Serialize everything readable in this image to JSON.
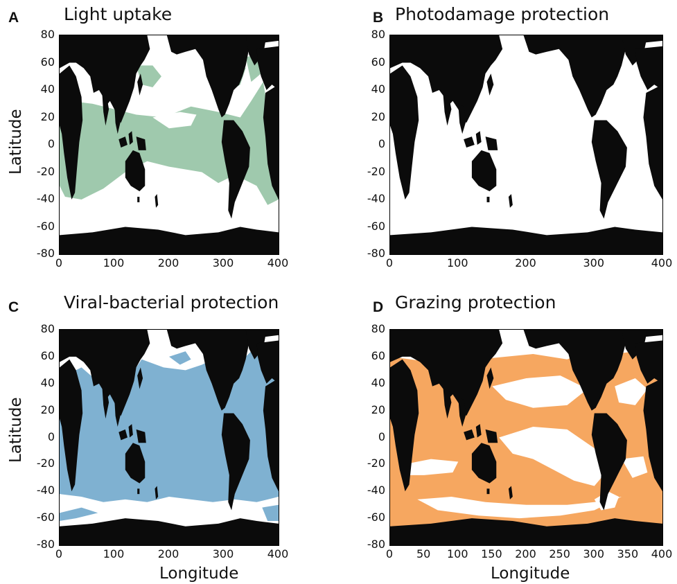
{
  "colors": {
    "land": "#0b0b0b",
    "ocean_blank": "#ffffff",
    "light_uptake": "#9fc9ad",
    "viral_bacterial": "#7fb1d1",
    "grazing": "#f6a760"
  },
  "chart_data": [
    {
      "type": "heatmap",
      "panel": "A",
      "title": "Light uptake",
      "xlabel": "",
      "ylabel": "Latitude",
      "xlim": [
        0,
        400
      ],
      "ylim": [
        -80,
        80
      ],
      "x_ticks": [
        0,
        100,
        200,
        300,
        400
      ],
      "y_ticks": [
        80,
        60,
        40,
        20,
        0,
        -20,
        -40,
        -60,
        -80
      ],
      "grid": false,
      "fill_color": "light_uptake"
    },
    {
      "type": "heatmap",
      "panel": "B",
      "title": "Photodamage protection",
      "xlabel": "",
      "ylabel": "",
      "xlim": [
        0,
        400
      ],
      "ylim": [
        -80,
        80
      ],
      "x_ticks": [
        0,
        100,
        200,
        300,
        400
      ],
      "y_ticks": [
        80,
        60,
        40,
        20,
        0,
        -20,
        -40,
        -60,
        -80
      ],
      "grid": false,
      "fill_color": "ocean_blank"
    },
    {
      "type": "heatmap",
      "panel": "C",
      "title": "Viral-bacterial protection",
      "xlabel": "Longitude",
      "ylabel": "Latitude",
      "xlim": [
        0,
        400
      ],
      "ylim": [
        -80,
        80
      ],
      "x_ticks": [
        0,
        100,
        200,
        300,
        400
      ],
      "y_ticks": [
        80,
        60,
        40,
        20,
        0,
        -20,
        -40,
        -60,
        -80
      ],
      "grid": false,
      "fill_color": "viral_bacterial"
    },
    {
      "type": "heatmap",
      "panel": "D",
      "title": "Grazing protection",
      "xlabel": "Longitude",
      "ylabel": "",
      "xlim": [
        0,
        400
      ],
      "ylim": [
        -80,
        80
      ],
      "x_ticks": [
        0,
        50,
        100,
        150,
        200,
        250,
        300,
        350,
        400
      ],
      "y_ticks": [
        80,
        60,
        40,
        20,
        0,
        -20,
        -40,
        -60,
        -80
      ],
      "grid": false,
      "fill_color": "grazing"
    }
  ]
}
